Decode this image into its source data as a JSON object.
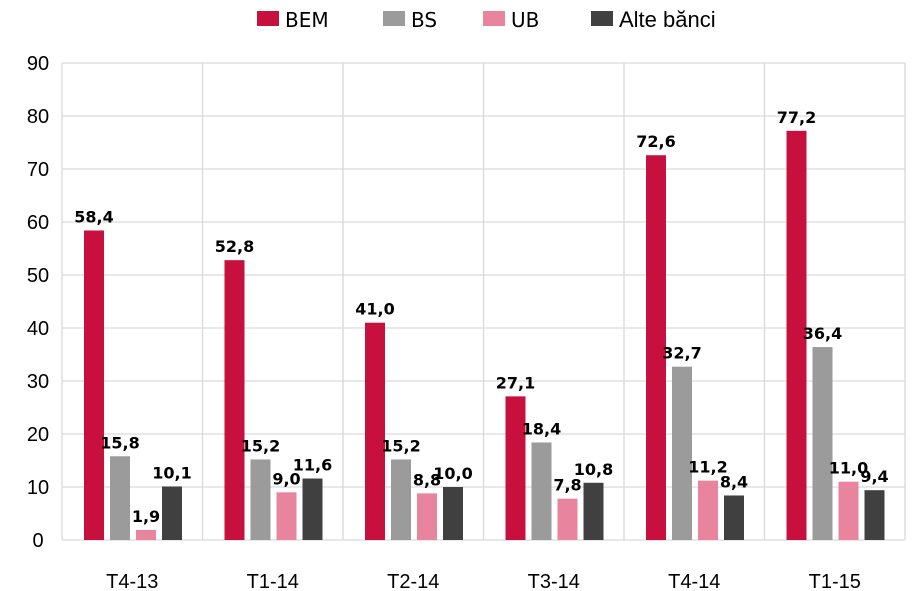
{
  "chart_data": {
    "type": "bar",
    "title": "",
    "xlabel": "",
    "ylabel": "",
    "ylim": [
      0,
      90
    ],
    "yticks": [
      0,
      10,
      20,
      30,
      40,
      50,
      60,
      70,
      80,
      90
    ],
    "grid": true,
    "legend_position": "top",
    "categories": [
      "T4-13",
      "T1-14",
      "T2-14",
      "T3-14",
      "T4-14",
      "T1-15"
    ],
    "series": [
      {
        "name": "BEM",
        "color": "#c8103e",
        "values": [
          58.4,
          52.8,
          41.0,
          27.1,
          72.6,
          77.2
        ],
        "labels": [
          "58,4",
          "52,8",
          "41,0",
          "27,1",
          "72,6",
          "77,2"
        ]
      },
      {
        "name": "BS",
        "color": "#9b9b9b",
        "values": [
          15.8,
          15.2,
          15.2,
          18.4,
          32.7,
          36.4
        ],
        "labels": [
          "15,8",
          "15,2",
          "15,2",
          "18,4",
          "32,7",
          "36,4"
        ]
      },
      {
        "name": "UB",
        "color": "#e8849e",
        "values": [
          1.9,
          9.0,
          8.8,
          7.8,
          11.2,
          11.0
        ],
        "labels": [
          "1,9",
          "9,0",
          "8,8",
          "7,8",
          "11,2",
          "11,0"
        ]
      },
      {
        "name": "Alte bănci",
        "color": "#404040",
        "values": [
          10.1,
          11.6,
          10.0,
          10.8,
          8.4,
          9.4
        ],
        "labels": [
          "10,1",
          "11,6",
          "10,0",
          "10,8",
          "8,4",
          "9,4"
        ]
      }
    ]
  }
}
